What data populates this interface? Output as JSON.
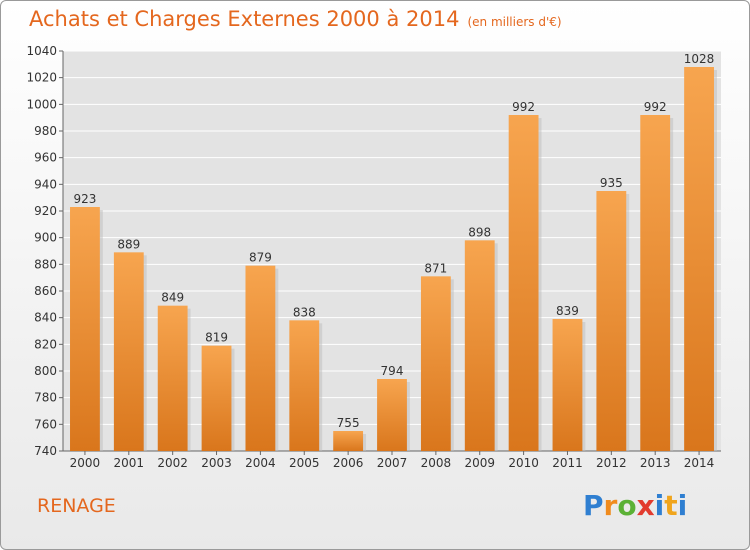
{
  "header": {
    "title": "Achats et Charges Externes 2000 à 2014",
    "subtitle": "(en milliers d'€)"
  },
  "footer": {
    "place": "RENAGE",
    "logo": "Proxiti"
  },
  "colors": {
    "bar_light": "#f7a54f",
    "bar_dark": "#d9761c",
    "title": "#e4671e",
    "plot_bg": "#e3e3e3",
    "grid": "#ffffff"
  },
  "chart_data": {
    "type": "bar",
    "categories": [
      "2000",
      "2001",
      "2002",
      "2003",
      "2004",
      "2005",
      "2006",
      "2007",
      "2008",
      "2009",
      "2010",
      "2011",
      "2012",
      "2013",
      "2014"
    ],
    "values": [
      923,
      889,
      849,
      819,
      879,
      838,
      755,
      794,
      871,
      898,
      992,
      839,
      935,
      992,
      1028
    ],
    "title": "Achats et Charges Externes 2000 à 2014",
    "subtitle": "(en milliers d'€)",
    "xlabel": "",
    "ylabel": "",
    "ylim": [
      740,
      1040
    ],
    "yticks": [
      740,
      760,
      780,
      800,
      820,
      840,
      860,
      880,
      900,
      920,
      940,
      960,
      980,
      1000,
      1020,
      1040
    ],
    "grid": true,
    "data_labels": true
  }
}
